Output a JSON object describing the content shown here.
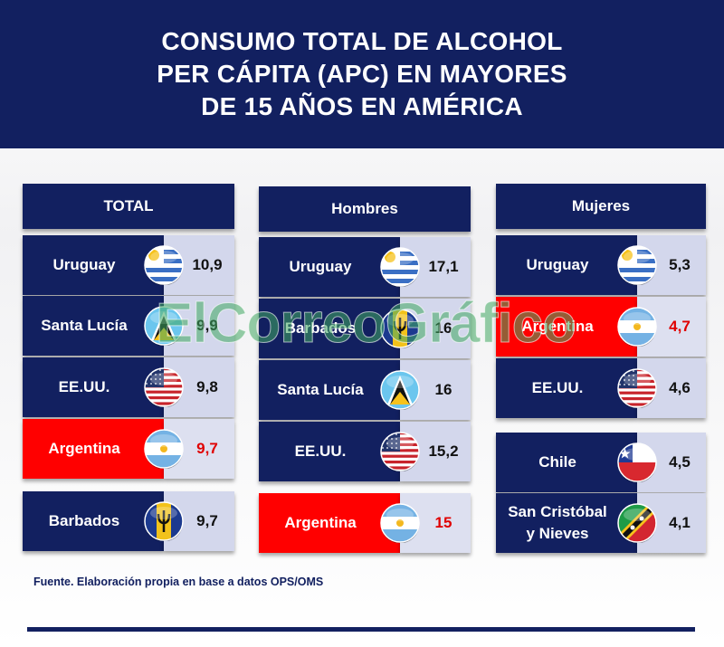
{
  "header": {
    "line1": "CONSUMO TOTAL DE ALCOHOL",
    "line2": "PER CÁPITA (APC) EN MAYORES",
    "line3": "DE 15 AÑOS EN AMÉRICA"
  },
  "chart_data": {
    "type": "table",
    "title": "CONSUMO TOTAL DE ALCOHOL PER CÁPITA (APC) EN MAYORES DE 15 AÑOS EN AMÉRICA",
    "columns": [
      {
        "name": "TOTAL",
        "rows": [
          {
            "country": "Uruguay",
            "value": "10,9",
            "flag": "uruguay-flag-icon",
            "highlight": false
          },
          {
            "country": "Santa Lucía",
            "value": "9,9",
            "flag": "saint-lucia-flag-icon",
            "highlight": false
          },
          {
            "country": "EE.UU.",
            "value": "9,8",
            "flag": "usa-flag-icon",
            "highlight": false
          },
          {
            "country": "Argentina",
            "value": "9,7",
            "flag": "argentina-flag-icon",
            "highlight": true
          },
          {
            "country": "Barbados",
            "value": "9,7",
            "flag": "barbados-flag-icon",
            "highlight": false
          }
        ]
      },
      {
        "name": "Hombres",
        "rows": [
          {
            "country": "Uruguay",
            "value": "17,1",
            "flag": "uruguay-flag-icon",
            "highlight": false
          },
          {
            "country": "Barbados",
            "value": "16",
            "flag": "barbados-flag-icon",
            "highlight": false
          },
          {
            "country": "Santa Lucía",
            "value": "16",
            "flag": "saint-lucia-flag-icon",
            "highlight": false
          },
          {
            "country": "EE.UU.",
            "value": "15,2",
            "flag": "usa-flag-icon",
            "highlight": false
          },
          {
            "country": "Argentina",
            "value": "15",
            "flag": "argentina-flag-icon",
            "highlight": true
          }
        ]
      },
      {
        "name": "Mujeres",
        "rows": [
          {
            "country": "Uruguay",
            "value": "5,3",
            "flag": "uruguay-flag-icon",
            "highlight": false
          },
          {
            "country": "Argentina",
            "value": "4,7",
            "flag": "argentina-flag-icon",
            "highlight": true
          },
          {
            "country": "EE.UU.",
            "value": "4,6",
            "flag": "usa-flag-icon",
            "highlight": false
          },
          {
            "country": "Chile",
            "value": "4,5",
            "flag": "chile-flag-icon",
            "highlight": false
          },
          {
            "country": "San Cristóbal\ny Nieves",
            "value": "4,1",
            "flag": "saint-kitts-nevis-flag-icon",
            "highlight": false
          }
        ]
      }
    ]
  },
  "source": "Fuente. Elaboración propia en base a datos OPS/OMS",
  "watermark": "ElCorreoGráfico",
  "colors": {
    "navy": "#122060",
    "highlight_red": "#ff0000",
    "value_bg": "#d3d7ec",
    "highlight_value_text": "#e00000",
    "watermark_green": "#3fa860"
  }
}
